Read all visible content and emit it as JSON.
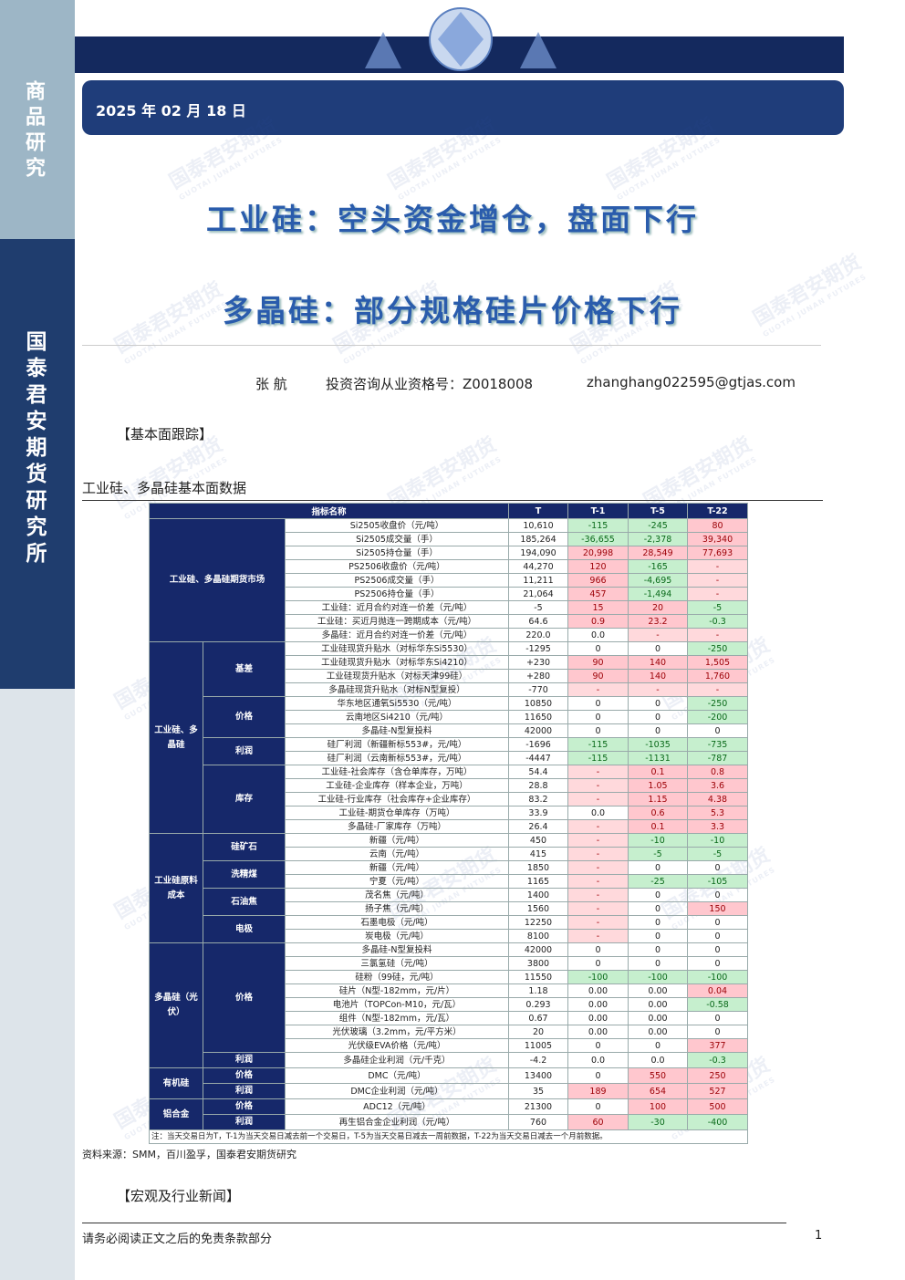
{
  "sidebar": {
    "top": "商品研究",
    "middle": "国泰君安期货研究所"
  },
  "header": {
    "date": "2025 年 02 月 18 日",
    "title": "工业硅：空头资金增仓，盘面下行",
    "subtitle": "多晶硅：部分规格硅片价格下行"
  },
  "author": {
    "name": "张 航",
    "license": "投资咨询从业资格号：Z0018008",
    "email": "zhanghang022595@gtjas.com"
  },
  "watermark": {
    "cn": "国泰君安期货",
    "en": "GUOTAI JUNAN FUTURES"
  },
  "section1": "【基本面跟踪】",
  "table_title": "工业硅、多晶硅基本面数据",
  "table": {
    "header": [
      "指标名称",
      "T",
      "T-1",
      "T-5",
      "T-22"
    ],
    "groups": [
      {
        "label": "工业硅、多晶硅期货市场",
        "subgroups": [
          {
            "rows": [
              [
                "Si2505收盘价（元/吨）",
                "10,610",
                "-115",
                "-245",
                "80"
              ],
              [
                "Si2505成交量（手）",
                "185,264",
                "-36,655",
                "-2,378",
                "39,340"
              ],
              [
                "Si2505持仓量（手）",
                "194,090",
                "20,998",
                "28,549",
                "77,693"
              ],
              [
                "PS2506收盘价（元/吨）",
                "44,270",
                "120",
                "-165",
                "-"
              ],
              [
                "PS2506成交量（手）",
                "11,211",
                "966",
                "-4,695",
                "-"
              ],
              [
                "PS2506持仓量（手）",
                "21,064",
                "457",
                "-1,494",
                "-"
              ],
              [
                "工业硅：近月合约对连一价差（元/吨）",
                "-5",
                "15",
                "20",
                "-5"
              ],
              [
                "工业硅：买近月抛连一跨期成本（元/吨）",
                "64.6",
                "0.9",
                "23.2",
                "-0.3"
              ],
              [
                "多晶硅：近月合约对连一价差（元/吨）",
                "220.0",
                "0.0",
                "-",
                "-"
              ]
            ]
          }
        ]
      },
      {
        "label": "工业硅、多晶硅",
        "subgroups": [
          {
            "label": "基差",
            "rows": [
              [
                "工业硅现货升贴水（对标华东Si5530）",
                "-1295",
                "0",
                "0",
                "-250"
              ],
              [
                "工业硅现货升贴水（对标华东Si4210）",
                "+230",
                "90",
                "140",
                "1,505"
              ],
              [
                "工业硅现货升贴水（对标天津99硅）",
                "+280",
                "90",
                "140",
                "1,760"
              ],
              [
                "多晶硅现货升贴水（对标N型复投）",
                "-770",
                "-",
                "-",
                "-"
              ]
            ]
          },
          {
            "label": "价格",
            "rows": [
              [
                "华东地区通氧Si5530（元/吨）",
                "10850",
                "0",
                "0",
                "-250"
              ],
              [
                "云南地区Si4210（元/吨）",
                "11650",
                "0",
                "0",
                "-200"
              ],
              [
                "多晶硅-N型复投料",
                "42000",
                "0",
                "0",
                "0"
              ]
            ]
          },
          {
            "label": "利润",
            "rows": [
              [
                "硅厂利润（新疆新标553#，元/吨）",
                "-1696",
                "-115",
                "-1035",
                "-735"
              ],
              [
                "硅厂利润（云南新标553#，元/吨）",
                "-4447",
                "-115",
                "-1131",
                "-787"
              ]
            ]
          },
          {
            "label": "库存",
            "rows": [
              [
                "工业硅-社会库存（含仓单库存，万吨）",
                "54.4",
                "-",
                "0.1",
                "0.8"
              ],
              [
                "工业硅-企业库存（样本企业，万吨）",
                "28.8",
                "-",
                "1.05",
                "3.6"
              ],
              [
                "工业硅-行业库存（社会库存+企业库存）",
                "83.2",
                "-",
                "1.15",
                "4.38"
              ],
              [
                "工业硅-期货仓单库存（万吨）",
                "33.9",
                "0.0",
                "0.6",
                "5.3"
              ],
              [
                "多晶硅-厂家库存（万吨）",
                "26.4",
                "-",
                "0.1",
                "3.3"
              ]
            ]
          }
        ]
      },
      {
        "label": "工业硅原料成本",
        "subgroups": [
          {
            "label": "硅矿石",
            "rows": [
              [
                "新疆（元/吨）",
                "450",
                "-",
                "-10",
                "-10"
              ],
              [
                "云南（元/吨）",
                "415",
                "-",
                "-5",
                "-5"
              ]
            ]
          },
          {
            "label": "洗精煤",
            "rows": [
              [
                "新疆（元/吨）",
                "1850",
                "-",
                "0",
                "0"
              ],
              [
                "宁夏（元/吨）",
                "1165",
                "-",
                "-25",
                "-105"
              ]
            ]
          },
          {
            "label": "石油焦",
            "rows": [
              [
                "茂名焦（元/吨）",
                "1400",
                "-",
                "0",
                "0"
              ],
              [
                "扬子焦（元/吨）",
                "1560",
                "-",
                "0",
                "150"
              ]
            ]
          },
          {
            "label": "电极",
            "rows": [
              [
                "石墨电极（元/吨）",
                "12250",
                "-",
                "0",
                "0"
              ],
              [
                "炭电极（元/吨）",
                "8100",
                "-",
                "0",
                "0"
              ]
            ]
          }
        ]
      },
      {
        "label": "多晶硅（光伏）",
        "subgroups": [
          {
            "label": "价格",
            "rows": [
              [
                "多晶硅-N型复投料",
                "42000",
                "0",
                "0",
                "0"
              ],
              [
                "三氯氢硅（元/吨）",
                "3800",
                "0",
                "0",
                "0"
              ],
              [
                "硅粉（99硅，元/吨）",
                "11550",
                "-100",
                "-100",
                "-100"
              ],
              [
                "硅片（N型-182mm，元/片）",
                "1.18",
                "0.00",
                "0.00",
                "0.04"
              ],
              [
                "电池片（TOPCon-M10，元/瓦）",
                "0.293",
                "0.00",
                "0.00",
                "-0.58"
              ],
              [
                "组件（N型-182mm，元/瓦）",
                "0.67",
                "0.00",
                "0.00",
                "0"
              ],
              [
                "光伏玻璃（3.2mm，元/平方米）",
                "20",
                "0.00",
                "0.00",
                "0"
              ],
              [
                "光伏级EVA价格（元/吨）",
                "11005",
                "0",
                "0",
                "377"
              ]
            ]
          },
          {
            "label": "利润",
            "rows": [
              [
                "多晶硅企业利润（元/千克）",
                "-4.2",
                "0.0",
                "0.0",
                "-0.3"
              ]
            ]
          }
        ]
      },
      {
        "label": "有机硅",
        "subgroups": [
          {
            "label": "价格",
            "rows": [
              [
                "DMC（元/吨）",
                "13400",
                "0",
                "550",
                "250"
              ]
            ]
          },
          {
            "label": "利润",
            "rows": [
              [
                "DMC企业利润（元/吨）",
                "35",
                "189",
                "654",
                "527"
              ]
            ]
          }
        ]
      },
      {
        "label": "铝合金",
        "subgroups": [
          {
            "label": "价格",
            "rows": [
              [
                "ADC12（元/吨）",
                "21300",
                "0",
                "100",
                "500"
              ]
            ]
          },
          {
            "label": "利润",
            "rows": [
              [
                "再生铝合金企业利润（元/吨）",
                "760",
                "60",
                "-30",
                "-400"
              ]
            ]
          }
        ]
      }
    ],
    "note": "注：当天交易日为T，T-1为当天交易日减去前一个交易日，T-5为当天交易日减去一周前数据，T-22为当天交易日减去一个月前数据。"
  },
  "source": "资料来源：SMM，百川盈孚，国泰君安期货研究",
  "section2": "【宏观及行业新闻】",
  "footer": {
    "disclaimer": "请务必阅读正文之后的免责条款部分",
    "page": "1"
  }
}
